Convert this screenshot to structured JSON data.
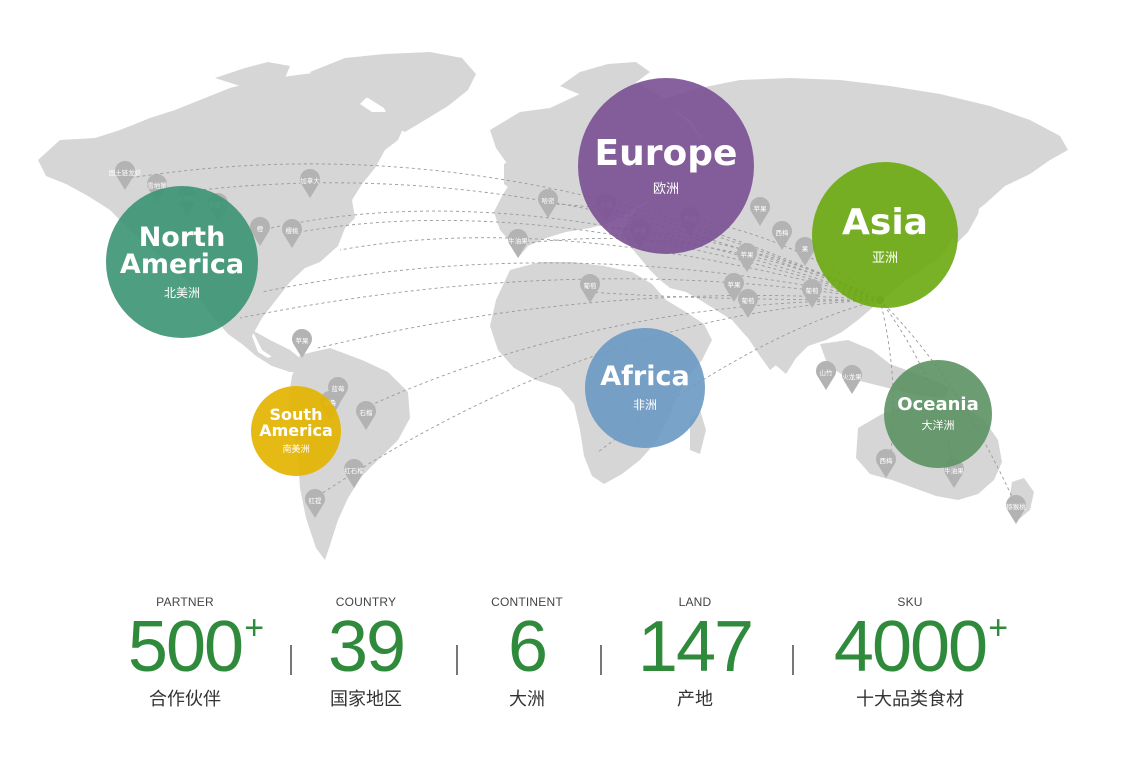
{
  "colors": {
    "land": "#d6d6d6",
    "pin": "#b3b3b3",
    "route": "#9a9a9a",
    "accent_green": "#2f8a3c"
  },
  "continents": [
    {
      "key": "europe",
      "name": "Europe",
      "zh": "欧洲",
      "color": "#7a4f93"
    },
    {
      "key": "asia",
      "name": "Asia",
      "zh": "亚洲",
      "color": "#6aaa0f"
    },
    {
      "key": "north_america",
      "name": "North America",
      "name_lines": [
        "North",
        "America"
      ],
      "zh": "北美洲",
      "color": "#3b9374"
    },
    {
      "key": "africa",
      "name": "Africa",
      "zh": "非洲",
      "color": "#6c99c4"
    },
    {
      "key": "south_america",
      "name": "South America",
      "name_lines": [
        "South",
        "America"
      ],
      "zh": "南美洲",
      "color": "#e4b400"
    },
    {
      "key": "oceania",
      "name": "Oceania",
      "zh": "大洋洲",
      "color": "#5c9163"
    }
  ],
  "pins": [
    "国土链龙虾",
    "雪地蟹",
    "甜樱桃",
    "加拿大",
    "樱桃",
    "苹果",
    "西梅",
    "牛油果",
    "果",
    "苹果",
    "哈密",
    "红提",
    "秘鲁",
    "石榴",
    "蓝莓",
    "苹果",
    "红石榴",
    "葡萄",
    "牛肉",
    "苹果",
    "西柚",
    "苹果",
    "葡萄",
    "山竹",
    "火龙果",
    "猕猴桃",
    "西梅",
    "牛油果",
    "葡萄",
    "橙",
    "车厘子"
  ],
  "stats": [
    {
      "label": "PARTNER",
      "value": "500",
      "suffix": "+",
      "zh": "合作伙伴"
    },
    {
      "label": "COUNTRY",
      "value": "39",
      "suffix": "",
      "zh": "国家地区"
    },
    {
      "label": "CONTINENT",
      "value": "6",
      "suffix": "",
      "zh": "大洲"
    },
    {
      "label": "LAND",
      "value": "147",
      "suffix": "",
      "zh": "产地"
    },
    {
      "label": "SKU",
      "value": "4000",
      "suffix": "+",
      "zh": "十大品类食材"
    }
  ]
}
